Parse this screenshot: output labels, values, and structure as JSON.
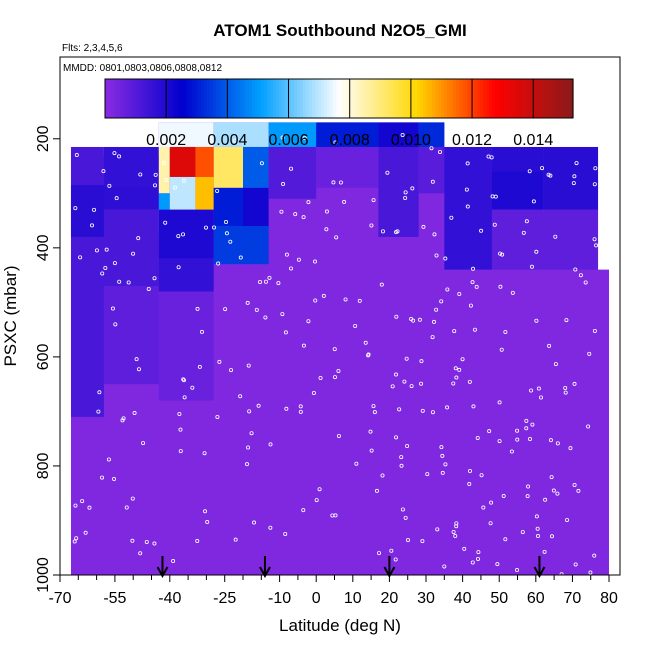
{
  "chart_data": {
    "type": "heatmap",
    "title": "ATOM1 Southbound N2O5_GMI",
    "annotations": [
      "Flts: 2,3,4,5,6",
      "MMDD: 0801,0803,0806,0808,0812"
    ],
    "xlabel": "Latitude (deg N)",
    "ylabel": "PSXC (mbar)",
    "xlim": [
      -70,
      83
    ],
    "ylim": [
      1000,
      50
    ],
    "x_ticks": [
      -70,
      -55,
      -40,
      -25,
      -10,
      0,
      10,
      20,
      30,
      40,
      50,
      60,
      70,
      80
    ],
    "x_tick_labels": [
      "-70",
      "-55",
      "-40",
      "-25",
      "-10",
      "0",
      "10",
      "20",
      "30",
      "40",
      "50",
      "60",
      "70",
      "80"
    ],
    "x_minor_ticks": [
      -65,
      -60,
      -50,
      -45,
      -35,
      -30,
      -20,
      -15,
      -5,
      5,
      15,
      25,
      35,
      45,
      55,
      65,
      75
    ],
    "y_ticks": [
      200,
      400,
      600,
      800,
      1000
    ],
    "y_tick_labels": [
      "200",
      "400",
      "600",
      "800",
      "1000"
    ],
    "colorbar": {
      "range": [
        0,
        0.0153
      ],
      "ticks": [
        0.002,
        0.004,
        0.006,
        0.008,
        0.01,
        0.012,
        0.014
      ],
      "tick_labels": [
        "0.002",
        "0.004",
        "0.006",
        "0.008",
        "0.010",
        "0.012",
        "0.014"
      ],
      "colors": [
        "#8a2be2",
        "#0000cd",
        "#00a0ff",
        "#ffffff",
        "#ffd700",
        "#ff0000",
        "#8b1a1a"
      ]
    },
    "background_value": 0.0002,
    "cells": [
      {
        "lat": [
          -67,
          -58
        ],
        "p": [
          215,
          710
        ],
        "v": 0.0012
      },
      {
        "lat": [
          -67,
          -58
        ],
        "p": [
          285,
          380
        ],
        "v": 0.0018
      },
      {
        "lat": [
          -58,
          -43
        ],
        "p": [
          215,
          285
        ],
        "v": 0.0016
      },
      {
        "lat": [
          -58,
          -43
        ],
        "p": [
          285,
          330
        ],
        "v": 0.0017
      },
      {
        "lat": [
          -58,
          -43
        ],
        "p": [
          330,
          470
        ],
        "v": 0.0012
      },
      {
        "lat": [
          -58,
          -43
        ],
        "p": [
          470,
          650
        ],
        "v": 0.0008
      },
      {
        "lat": [
          -43,
          -28
        ],
        "p": [
          170,
          215
        ],
        "v": 0.0075
      },
      {
        "lat": [
          -43,
          -40
        ],
        "p": [
          215,
          300
        ],
        "v": 0.0085
      },
      {
        "lat": [
          -40,
          -33
        ],
        "p": [
          215,
          270
        ],
        "v": 0.0135
      },
      {
        "lat": [
          -33,
          -28
        ],
        "p": [
          215,
          270
        ],
        "v": 0.0118
      },
      {
        "lat": [
          -43,
          -40
        ],
        "p": [
          300,
          375
        ],
        "v": 0.005
      },
      {
        "lat": [
          -40,
          -33
        ],
        "p": [
          270,
          330
        ],
        "v": 0.007
      },
      {
        "lat": [
          -33,
          -28
        ],
        "p": [
          270,
          330
        ],
        "v": 0.0105
      },
      {
        "lat": [
          -43,
          -28
        ],
        "p": [
          330,
          420
        ],
        "v": 0.002
      },
      {
        "lat": [
          -43,
          -28
        ],
        "p": [
          420,
          480
        ],
        "v": 0.0016
      },
      {
        "lat": [
          -43,
          -28
        ],
        "p": [
          480,
          680
        ],
        "v": 0.0006
      },
      {
        "lat": [
          -28,
          -13
        ],
        "p": [
          170,
          215
        ],
        "v": 0.0068
      },
      {
        "lat": [
          -28,
          -20
        ],
        "p": [
          215,
          290
        ],
        "v": 0.0092
      },
      {
        "lat": [
          -20,
          -13
        ],
        "p": [
          215,
          290
        ],
        "v": 0.004
      },
      {
        "lat": [
          -28,
          -20
        ],
        "p": [
          290,
          360
        ],
        "v": 0.003
      },
      {
        "lat": [
          -20,
          -13
        ],
        "p": [
          290,
          360
        ],
        "v": 0.0022
      },
      {
        "lat": [
          -28,
          -13
        ],
        "p": [
          360,
          430
        ],
        "v": 0.0035
      },
      {
        "lat": [
          -13,
          0
        ],
        "p": [
          170,
          215
        ],
        "v": 0.005
      },
      {
        "lat": [
          -13,
          0
        ],
        "p": [
          215,
          310
        ],
        "v": 0.001
      },
      {
        "lat": [
          0,
          17
        ],
        "p": [
          170,
          215
        ],
        "v": 0.003
      },
      {
        "lat": [
          0,
          17
        ],
        "p": [
          215,
          290
        ],
        "v": 0.0006
      },
      {
        "lat": [
          17,
          28
        ],
        "p": [
          170,
          215
        ],
        "v": 0.0022
      },
      {
        "lat": [
          17,
          28
        ],
        "p": [
          215,
          380
        ],
        "v": 0.0012
      },
      {
        "lat": [
          28,
          35
        ],
        "p": [
          170,
          215
        ],
        "v": 0.0032
      },
      {
        "lat": [
          28,
          35
        ],
        "p": [
          215,
          300
        ],
        "v": 0.0009
      },
      {
        "lat": [
          35,
          48
        ],
        "p": [
          215,
          440
        ],
        "v": 0.0016
      },
      {
        "lat": [
          48,
          62
        ],
        "p": [
          215,
          260
        ],
        "v": 0.0018
      },
      {
        "lat": [
          48,
          62
        ],
        "p": [
          260,
          330
        ],
        "v": 0.002
      },
      {
        "lat": [
          48,
          62
        ],
        "p": [
          330,
          440
        ],
        "v": 0.0008
      },
      {
        "lat": [
          62,
          77
        ],
        "p": [
          215,
          330
        ],
        "v": 0.0018
      },
      {
        "lat": [
          62,
          77
        ],
        "p": [
          330,
          440
        ],
        "v": 0.0008
      }
    ],
    "arrows_lat": [
      -42,
      -14,
      20,
      61
    ]
  }
}
